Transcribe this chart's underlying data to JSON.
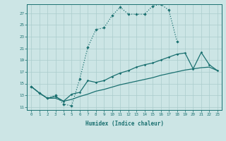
{
  "background_color": "#cce5e5",
  "grid_color": "#aacccc",
  "line_color": "#1a7070",
  "xlabel": "Humidex (Indice chaleur)",
  "yticks": [
    11,
    13,
    15,
    17,
    19,
    21,
    23,
    25,
    27
  ],
  "xticks": [
    0,
    1,
    2,
    3,
    4,
    5,
    6,
    7,
    8,
    9,
    10,
    11,
    12,
    13,
    14,
    15,
    16,
    17,
    18,
    19,
    20,
    21,
    22,
    23
  ],
  "xlim": [
    -0.5,
    23.5
  ],
  "ylim": [
    10.5,
    28.5
  ],
  "top_x": [
    0,
    1,
    2,
    3,
    4,
    5,
    6,
    7,
    8,
    9,
    10,
    11,
    12,
    13,
    14,
    15,
    16,
    17,
    18
  ],
  "top_y": [
    14.5,
    13.4,
    12.5,
    13.0,
    11.5,
    11.2,
    15.8,
    21.2,
    24.2,
    24.5,
    26.6,
    28.0,
    26.8,
    26.8,
    26.8,
    28.2,
    28.5,
    27.5,
    22.2
  ],
  "mid_x": [
    0,
    1,
    2,
    3,
    4,
    5,
    6,
    7,
    8,
    9,
    10,
    11,
    12,
    13,
    14,
    15,
    16,
    17,
    18,
    19,
    20,
    21,
    22,
    23
  ],
  "mid_y": [
    14.5,
    13.4,
    12.5,
    12.8,
    12.0,
    13.2,
    13.5,
    15.5,
    15.2,
    15.5,
    16.2,
    16.8,
    17.2,
    17.8,
    18.2,
    18.5,
    19.0,
    19.5,
    20.0,
    20.2,
    17.5,
    20.3,
    18.2,
    17.2
  ],
  "bot_x": [
    0,
    1,
    2,
    3,
    4,
    5,
    6,
    7,
    8,
    9,
    10,
    11,
    12,
    13,
    14,
    15,
    16,
    17,
    18,
    19,
    20,
    21,
    22,
    23
  ],
  "bot_y": [
    14.5,
    13.4,
    12.5,
    12.5,
    12.0,
    12.3,
    12.8,
    13.2,
    13.7,
    14.0,
    14.4,
    14.8,
    15.1,
    15.4,
    15.7,
    16.0,
    16.4,
    16.7,
    17.0,
    17.3,
    17.5,
    17.7,
    17.8,
    17.2
  ]
}
